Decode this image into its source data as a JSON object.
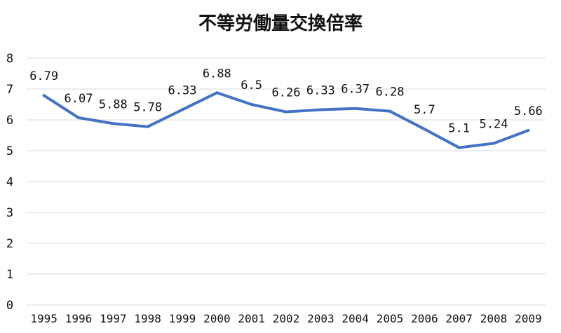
{
  "chart_data": {
    "type": "line",
    "title": "不等労働量交換倍率",
    "xlabel": "",
    "ylabel": "",
    "ylim": [
      0,
      8
    ],
    "yticks": [
      0,
      1,
      2,
      3,
      4,
      5,
      6,
      7,
      8
    ],
    "grid": true,
    "legend": "none",
    "x": [
      "1995",
      "1996",
      "1997",
      "1998",
      "1999",
      "2000",
      "2001",
      "2002",
      "2003",
      "2004",
      "2005",
      "2006",
      "2007",
      "2008",
      "2009"
    ],
    "values": [
      6.79,
      6.07,
      5.88,
      5.78,
      6.33,
      6.88,
      6.5,
      6.26,
      6.33,
      6.37,
      6.28,
      5.7,
      5.1,
      5.24,
      5.66
    ],
    "data_labels": [
      "6.79",
      "6.07",
      "5.88",
      "5.78",
      "6.33",
      "6.88",
      "6.5",
      "6.26",
      "6.33",
      "6.37",
      "6.28",
      "5.7",
      "5.1",
      "5.24",
      "5.66"
    ],
    "line_color": "#4472c4"
  }
}
